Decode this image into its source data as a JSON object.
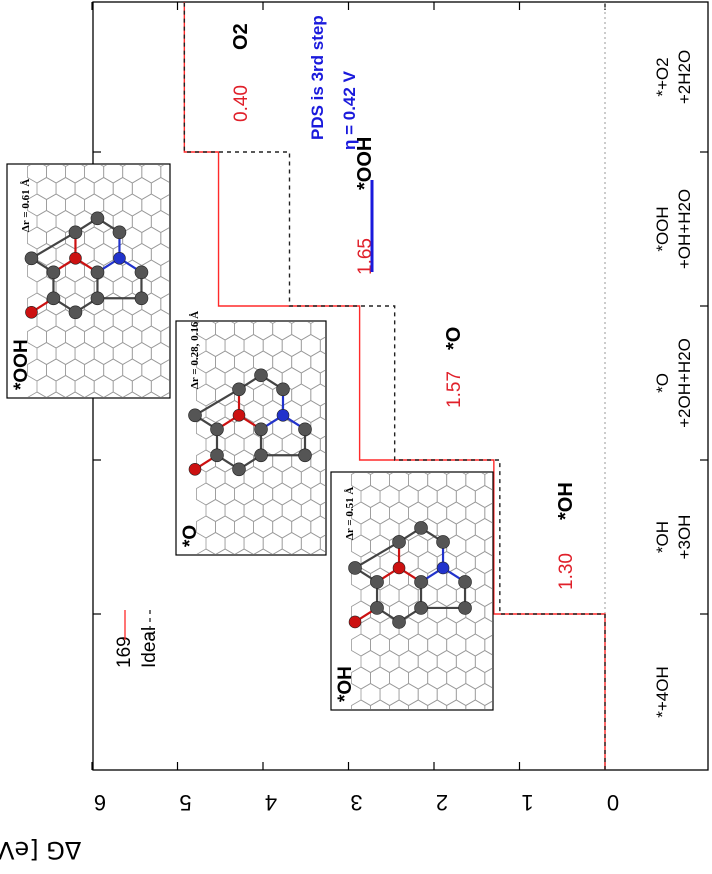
{
  "chart_data": {
    "type": "line",
    "orientation": "rotated-90-clockwise",
    "xlabel": "",
    "ylabel": "ΔG [eV]",
    "ylim": [
      0,
      6
    ],
    "y_ticks": [
      "0",
      "1",
      "2",
      "3",
      "4",
      "5",
      "6"
    ],
    "categories": [
      "*+4OH",
      "*OH\n+3OH",
      "*O\n+2OH+H2O",
      "*OOH\n+OH+H2O",
      "*+O2\n+2H2O"
    ],
    "series": [
      {
        "name": "169",
        "style": "solid",
        "color": "#ff2a2a",
        "values": [
          0.0,
          1.3,
          2.87,
          4.52,
          4.92
        ]
      },
      {
        "name": "Ideal",
        "style": "dashed",
        "color": "#222222",
        "values": [
          0.0,
          1.23,
          2.46,
          3.69,
          4.92
        ]
      }
    ],
    "step_values": [
      "1.30",
      "1.57",
      "1.65",
      "0.40"
    ],
    "species_labels": [
      "*OH",
      "*O",
      "*OOH",
      "O2"
    ],
    "annotations": {
      "pds_line1": "PDS is 3rd step",
      "pds_line2": "η = 0.42 V",
      "pds_color": "#1a1adc"
    },
    "insets": [
      {
        "title": "*OH",
        "delta_r": "Δr = 0.51 Å"
      },
      {
        "title": "*O",
        "delta_r": "Δr = 0.28, 0.16 Å"
      },
      {
        "title": "*OOH",
        "delta_r": "Δr = 0.61 Å"
      }
    ],
    "colors": {
      "value_label": "#e0202a",
      "line_169": "#ff2a2a",
      "ideal": "#222222",
      "oxygen": "#cc1111",
      "nitrogen": "#2233cc",
      "carbon": "#555555"
    }
  }
}
